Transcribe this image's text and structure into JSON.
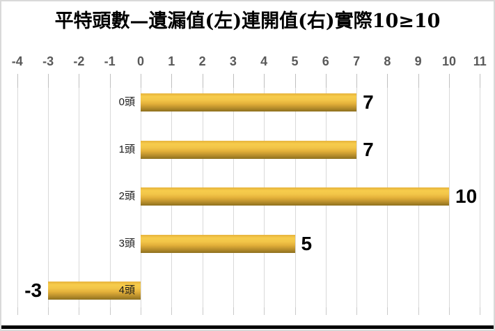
{
  "title": "平特頭數—遺漏值(左)連開值(右)實際10≥10",
  "chart_data": {
    "type": "bar",
    "orientation": "horizontal",
    "title": "平特頭數—遺漏值(左)連開值(右)實際10≥10",
    "categories": [
      "0頭",
      "1頭",
      "2頭",
      "3頭",
      "4頭"
    ],
    "values": [
      7,
      7,
      10,
      5,
      -3
    ],
    "data_labels": [
      "7",
      "7",
      "10",
      "5",
      "-3"
    ],
    "x_ticks": [
      "-4",
      "-3",
      "-2",
      "-1",
      "0",
      "1",
      "2",
      "3",
      "4",
      "5",
      "6",
      "7",
      "8",
      "9",
      "10",
      "11"
    ],
    "xlim": [
      -4,
      11
    ],
    "xlabel": "",
    "ylabel": "",
    "grid": true,
    "legend": "none",
    "bar_color": "#F2C445",
    "bar_gradient": [
      "#E6B33C",
      "#F7CC4C",
      "#E2AF39",
      "#8E701E"
    ],
    "data_label_color": "#000000",
    "axis_tick_label_color": "#595959",
    "gridline_color": "#D9D9D9",
    "category_label_color": "#1A1A1A",
    "background_color": "#FFFFFF"
  }
}
